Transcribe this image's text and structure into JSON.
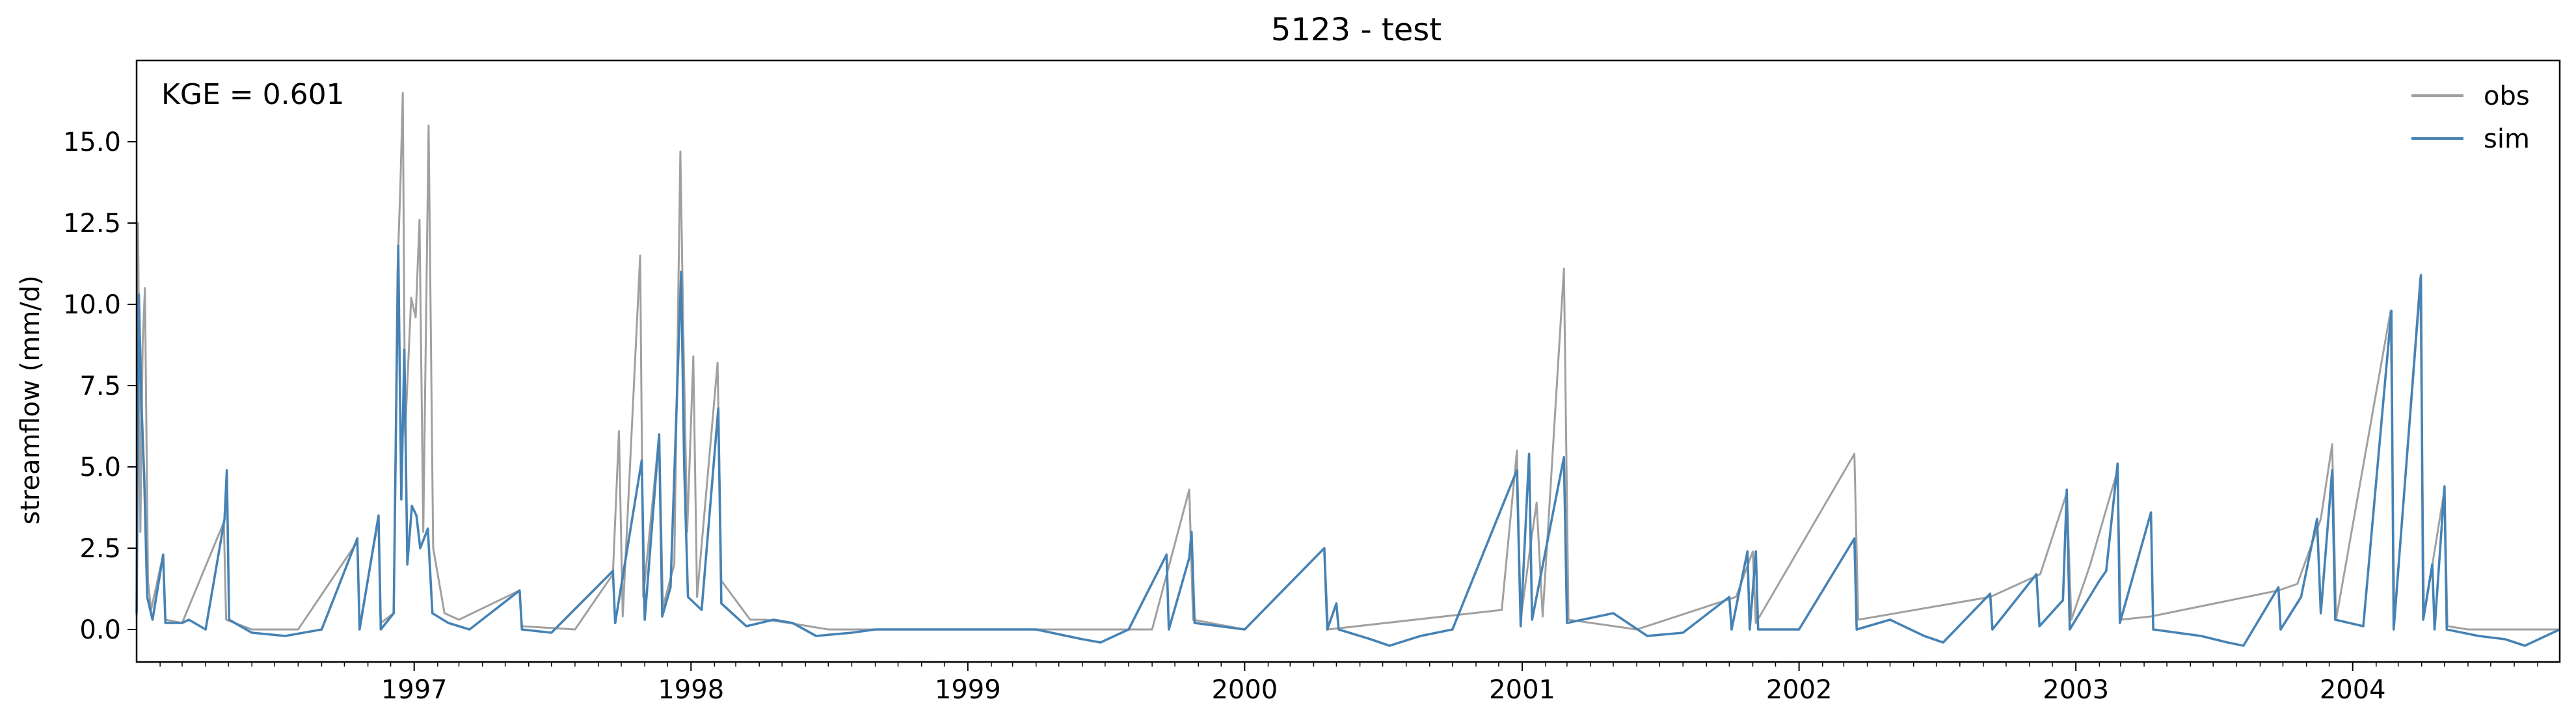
{
  "chart_data": {
    "type": "line",
    "title": "5123 - test",
    "xlabel": "",
    "ylabel": "streamflow (mm/d)",
    "annotation": "KGE = 0.601",
    "x_range": [
      "1996-01-01",
      "2004-09-30"
    ],
    "ylim": [
      -1.0,
      17.5
    ],
    "yticks": [
      0.0,
      2.5,
      5.0,
      7.5,
      10.0,
      12.5,
      15.0
    ],
    "ytick_labels": [
      "0.0",
      "2.5",
      "5.0",
      "7.5",
      "10.0",
      "12.5",
      "15.0"
    ],
    "xticks": [
      "1997-01-01",
      "1998-01-01",
      "1999-01-01",
      "2000-01-01",
      "2001-01-01",
      "2002-01-01",
      "2003-01-01",
      "2004-01-01"
    ],
    "xtick_labels": [
      "1997",
      "1998",
      "1999",
      "2000",
      "2001",
      "2002",
      "2003",
      "2004"
    ],
    "grid": false,
    "legend_position": "top-right",
    "series": [
      {
        "name": "obs",
        "color": "#a0a0a0",
        "points": [
          [
            "1996-01-01",
            0.4
          ],
          [
            "1996-01-03",
            12.5
          ],
          [
            "1996-01-06",
            3.0
          ],
          [
            "1996-01-09",
            8.8
          ],
          [
            "1996-01-12",
            10.5
          ],
          [
            "1996-01-16",
            1.5
          ],
          [
            "1996-01-20",
            0.6
          ],
          [
            "1996-02-05",
            2.3
          ],
          [
            "1996-02-08",
            0.3
          ],
          [
            "1996-03-01",
            0.2
          ],
          [
            "1996-04-25",
            3.3
          ],
          [
            "1996-04-28",
            0.3
          ],
          [
            "1996-06-01",
            0.0
          ],
          [
            "1996-08-01",
            0.0
          ],
          [
            "1996-10-18",
            2.7
          ],
          [
            "1996-10-21",
            0.1
          ],
          [
            "1996-11-15",
            3.4
          ],
          [
            "1996-11-18",
            0.2
          ],
          [
            "1996-12-05",
            0.5
          ],
          [
            "1996-12-10",
            11.0
          ],
          [
            "1996-12-14",
            13.8
          ],
          [
            "1996-12-17",
            16.5
          ],
          [
            "1996-12-20",
            6.0
          ],
          [
            "1996-12-28",
            10.2
          ],
          [
            "1997-01-03",
            9.6
          ],
          [
            "1997-01-08",
            12.6
          ],
          [
            "1997-01-13",
            3.0
          ],
          [
            "1997-01-20",
            15.5
          ],
          [
            "1997-01-26",
            2.5
          ],
          [
            "1997-02-10",
            0.5
          ],
          [
            "1997-03-01",
            0.3
          ],
          [
            "1997-05-20",
            1.2
          ],
          [
            "1997-05-23",
            0.1
          ],
          [
            "1997-08-01",
            0.0
          ],
          [
            "1997-09-20",
            1.7
          ],
          [
            "1997-09-28",
            6.1
          ],
          [
            "1997-10-03",
            0.4
          ],
          [
            "1997-10-26",
            11.5
          ],
          [
            "1997-10-30",
            1.0
          ],
          [
            "1997-11-20",
            6.0
          ],
          [
            "1997-11-25",
            0.7
          ],
          [
            "1997-12-10",
            2.0
          ],
          [
            "1997-12-18",
            14.7
          ],
          [
            "1997-12-22",
            9.0
          ],
          [
            "1997-12-27",
            3.0
          ],
          [
            "1998-01-04",
            8.4
          ],
          [
            "1998-01-09",
            1.0
          ],
          [
            "1998-02-05",
            8.2
          ],
          [
            "1998-02-10",
            1.5
          ],
          [
            "1998-03-20",
            0.3
          ],
          [
            "1998-04-10",
            0.3
          ],
          [
            "1998-05-10",
            0.2
          ],
          [
            "1998-07-01",
            0.0
          ],
          [
            "1999-01-01",
            0.0
          ],
          [
            "1999-09-01",
            0.0
          ],
          [
            "1999-10-20",
            4.3
          ],
          [
            "1999-10-25",
            0.3
          ],
          [
            "2000-01-01",
            0.0
          ],
          [
            "2000-04-15",
            2.5
          ],
          [
            "2000-04-20",
            0.0
          ],
          [
            "2000-12-05",
            0.6
          ],
          [
            "2000-12-25",
            5.5
          ],
          [
            "2000-12-30",
            0.3
          ],
          [
            "2001-01-12",
            2.6
          ],
          [
            "2001-01-20",
            3.9
          ],
          [
            "2001-01-28",
            0.4
          ],
          [
            "2001-02-25",
            11.1
          ],
          [
            "2001-03-03",
            0.3
          ],
          [
            "2001-06-01",
            0.0
          ],
          [
            "2001-10-10",
            1.0
          ],
          [
            "2001-11-01",
            2.4
          ],
          [
            "2001-11-05",
            0.2
          ],
          [
            "2002-03-15",
            5.4
          ],
          [
            "2002-03-20",
            0.3
          ],
          [
            "2002-09-10",
            1.0
          ],
          [
            "2002-11-15",
            1.7
          ],
          [
            "2002-12-20",
            4.2
          ],
          [
            "2002-12-26",
            0.3
          ],
          [
            "2003-01-20",
            2.0
          ],
          [
            "2003-02-25",
            4.9
          ],
          [
            "2003-03-01",
            0.3
          ],
          [
            "2003-04-10",
            0.4
          ],
          [
            "2003-09-25",
            1.2
          ],
          [
            "2003-10-20",
            1.4
          ],
          [
            "2003-11-20",
            3.4
          ],
          [
            "2003-12-05",
            5.7
          ],
          [
            "2003-12-10",
            0.3
          ],
          [
            "2004-02-20",
            9.8
          ],
          [
            "2004-02-25",
            0.2
          ],
          [
            "2004-03-30",
            10.8
          ],
          [
            "2004-04-04",
            0.4
          ],
          [
            "2004-05-01",
            4.3
          ],
          [
            "2004-05-05",
            0.1
          ],
          [
            "2004-06-01",
            0.0
          ],
          [
            "2004-09-30",
            0.0
          ]
        ]
      },
      {
        "name": "sim",
        "color": "#4682b4",
        "points": [
          [
            "1996-01-01",
            0.5
          ],
          [
            "1996-01-04",
            10.3
          ],
          [
            "1996-01-07",
            7.2
          ],
          [
            "1996-01-11",
            4.7
          ],
          [
            "1996-01-15",
            1.0
          ],
          [
            "1996-01-22",
            0.3
          ],
          [
            "1996-02-05",
            2.3
          ],
          [
            "1996-02-08",
            0.2
          ],
          [
            "1996-03-01",
            0.2
          ],
          [
            "1996-03-10",
            0.3
          ],
          [
            "1996-04-01",
            0.0
          ],
          [
            "1996-04-26",
            3.4
          ],
          [
            "1996-04-29",
            4.9
          ],
          [
            "1996-05-02",
            0.3
          ],
          [
            "1996-06-01",
            -0.1
          ],
          [
            "1996-07-15",
            -0.2
          ],
          [
            "1996-09-01",
            0.0
          ],
          [
            "1996-10-18",
            2.8
          ],
          [
            "1996-10-21",
            0.0
          ],
          [
            "1996-11-15",
            3.5
          ],
          [
            "1996-11-18",
            0.0
          ],
          [
            "1996-12-05",
            0.5
          ],
          [
            "1996-12-11",
            11.8
          ],
          [
            "1996-12-15",
            4.0
          ],
          [
            "1996-12-19",
            8.6
          ],
          [
            "1996-12-23",
            2.0
          ],
          [
            "1996-12-29",
            3.8
          ],
          [
            "1997-01-04",
            3.5
          ],
          [
            "1997-01-09",
            2.5
          ],
          [
            "1997-01-19",
            3.1
          ],
          [
            "1997-01-25",
            0.5
          ],
          [
            "1997-02-15",
            0.2
          ],
          [
            "1997-03-15",
            0.0
          ],
          [
            "1997-05-20",
            1.2
          ],
          [
            "1997-05-23",
            0.0
          ],
          [
            "1997-07-01",
            -0.1
          ],
          [
            "1997-09-20",
            1.8
          ],
          [
            "1997-09-23",
            0.2
          ],
          [
            "1997-10-28",
            5.2
          ],
          [
            "1997-11-01",
            0.3
          ],
          [
            "1997-11-20",
            6.0
          ],
          [
            "1997-11-24",
            0.4
          ],
          [
            "1997-12-05",
            1.3
          ],
          [
            "1997-12-19",
            11.0
          ],
          [
            "1997-12-23",
            5.0
          ],
          [
            "1997-12-28",
            1.0
          ],
          [
            "1998-01-15",
            0.6
          ],
          [
            "1998-02-06",
            6.8
          ],
          [
            "1998-02-10",
            0.8
          ],
          [
            "1998-03-15",
            0.1
          ],
          [
            "1998-04-20",
            0.3
          ],
          [
            "1998-05-15",
            0.2
          ],
          [
            "1998-06-15",
            -0.2
          ],
          [
            "1998-08-01",
            -0.1
          ],
          [
            "1998-09-01",
            0.0
          ],
          [
            "1999-01-01",
            0.0
          ],
          [
            "1999-04-01",
            0.0
          ],
          [
            "1999-06-01",
            -0.3
          ],
          [
            "1999-06-25",
            -0.4
          ],
          [
            "1999-08-01",
            0.0
          ],
          [
            "1999-09-20",
            2.3
          ],
          [
            "1999-09-23",
            0.0
          ],
          [
            "1999-10-20",
            2.2
          ],
          [
            "1999-10-23",
            3.0
          ],
          [
            "1999-10-27",
            0.2
          ],
          [
            "2000-01-01",
            0.0
          ],
          [
            "2000-04-15",
            2.5
          ],
          [
            "2000-04-19",
            0.0
          ],
          [
            "2000-05-01",
            0.8
          ],
          [
            "2000-05-04",
            0.0
          ],
          [
            "2000-06-15",
            -0.3
          ],
          [
            "2000-07-10",
            -0.5
          ],
          [
            "2000-08-20",
            -0.2
          ],
          [
            "2000-10-01",
            0.0
          ],
          [
            "2000-12-25",
            4.9
          ],
          [
            "2000-12-30",
            0.1
          ],
          [
            "2001-01-10",
            5.4
          ],
          [
            "2001-01-14",
            0.3
          ],
          [
            "2001-02-25",
            5.3
          ],
          [
            "2001-03-01",
            0.2
          ],
          [
            "2001-05-01",
            0.5
          ],
          [
            "2001-06-15",
            -0.2
          ],
          [
            "2001-08-01",
            -0.1
          ],
          [
            "2001-10-01",
            1.0
          ],
          [
            "2001-10-04",
            0.0
          ],
          [
            "2001-10-25",
            2.4
          ],
          [
            "2001-10-28",
            0.0
          ],
          [
            "2001-11-05",
            2.4
          ],
          [
            "2001-11-08",
            0.0
          ],
          [
            "2002-01-01",
            0.0
          ],
          [
            "2002-03-15",
            2.8
          ],
          [
            "2002-03-18",
            0.0
          ],
          [
            "2002-05-01",
            0.3
          ],
          [
            "2002-06-15",
            -0.2
          ],
          [
            "2002-07-10",
            -0.4
          ],
          [
            "2002-09-10",
            1.1
          ],
          [
            "2002-09-13",
            0.0
          ],
          [
            "2002-11-10",
            1.7
          ],
          [
            "2002-11-14",
            0.1
          ],
          [
            "2002-12-15",
            0.9
          ],
          [
            "2002-12-20",
            4.3
          ],
          [
            "2002-12-24",
            0.0
          ],
          [
            "2003-02-01",
            1.5
          ],
          [
            "2003-02-10",
            1.8
          ],
          [
            "2003-02-25",
            5.1
          ],
          [
            "2003-02-28",
            0.2
          ],
          [
            "2003-04-10",
            3.6
          ],
          [
            "2003-04-13",
            0.0
          ],
          [
            "2003-06-15",
            -0.2
          ],
          [
            "2003-07-20",
            -0.4
          ],
          [
            "2003-08-10",
            -0.5
          ],
          [
            "2003-09-25",
            1.3
          ],
          [
            "2003-09-28",
            0.0
          ],
          [
            "2003-10-25",
            1.0
          ],
          [
            "2003-11-15",
            3.4
          ],
          [
            "2003-11-20",
            0.5
          ],
          [
            "2003-12-05",
            4.9
          ],
          [
            "2003-12-09",
            0.3
          ],
          [
            "2004-01-15",
            0.1
          ],
          [
            "2004-02-21",
            9.8
          ],
          [
            "2004-02-24",
            0.0
          ],
          [
            "2004-03-31",
            10.9
          ],
          [
            "2004-04-03",
            0.3
          ],
          [
            "2004-04-15",
            2.0
          ],
          [
            "2004-04-18",
            0.0
          ],
          [
            "2004-05-01",
            4.4
          ],
          [
            "2004-05-04",
            0.0
          ],
          [
            "2004-06-15",
            -0.2
          ],
          [
            "2004-07-20",
            -0.3
          ],
          [
            "2004-08-15",
            -0.5
          ],
          [
            "2004-09-30",
            0.0
          ]
        ]
      }
    ]
  }
}
